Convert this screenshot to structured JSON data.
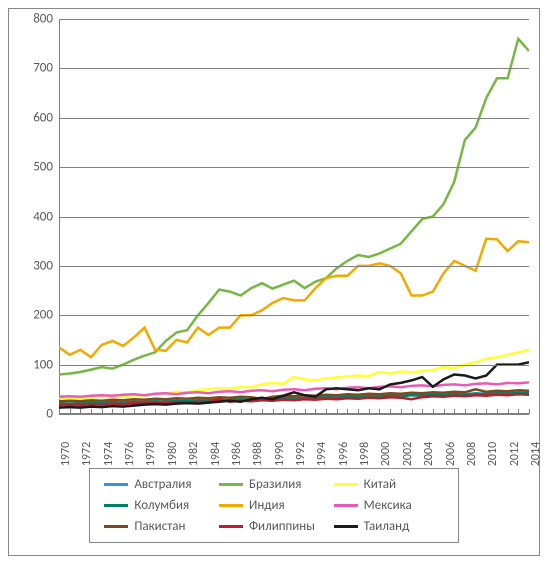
{
  "chart": {
    "type": "line",
    "background_color": "#ffffff",
    "border_color": "#888888",
    "grid_color": "#808080",
    "label_color": "#595959",
    "label_fontsize": 13,
    "xlabel_fontsize": 12,
    "ylim": [
      0,
      800
    ],
    "ytick_step": 100,
    "yticks": [
      0,
      100,
      200,
      300,
      400,
      500,
      600,
      700,
      800
    ],
    "xlim": [
      1970,
      2014
    ],
    "xticks": [
      1970,
      1972,
      1974,
      1976,
      1978,
      1980,
      1982,
      1984,
      1986,
      1988,
      1990,
      1992,
      1994,
      1996,
      1998,
      2000,
      2002,
      2004,
      2006,
      2008,
      2010,
      2012,
      2014
    ],
    "years": [
      1970,
      1971,
      1972,
      1973,
      1974,
      1975,
      1976,
      1977,
      1978,
      1979,
      1980,
      1981,
      1982,
      1983,
      1984,
      1985,
      1986,
      1987,
      1988,
      1989,
      1990,
      1991,
      1992,
      1993,
      1994,
      1995,
      1996,
      1997,
      1998,
      1999,
      2000,
      2001,
      2002,
      2003,
      2004,
      2005,
      2006,
      2007,
      2008,
      2009,
      2010,
      2011,
      2012,
      2013,
      2014
    ],
    "line_width": 2.5,
    "series": [
      {
        "name": "australia",
        "label": "Австралия",
        "color": "#2e9bd6",
        "values": [
          20,
          21,
          20,
          20,
          22,
          21,
          23,
          22,
          24,
          23,
          25,
          26,
          25,
          27,
          28,
          27,
          29,
          30,
          28,
          31,
          30,
          32,
          33,
          32,
          34,
          35,
          33,
          36,
          35,
          37,
          36,
          38,
          37,
          39,
          38,
          40,
          39,
          41,
          40,
          42,
          41,
          42,
          43,
          42,
          43
        ]
      },
      {
        "name": "brazil",
        "label": "Бразилия",
        "color": "#77b843",
        "values": [
          80,
          82,
          85,
          90,
          95,
          92,
          100,
          110,
          118,
          125,
          148,
          165,
          170,
          200,
          225,
          252,
          248,
          240,
          255,
          265,
          254,
          262,
          270,
          255,
          268,
          275,
          295,
          310,
          322,
          318,
          325,
          335,
          345,
          370,
          395,
          400,
          425,
          470,
          555,
          580,
          640,
          680,
          680,
          760,
          735
        ]
      },
      {
        "name": "china",
        "label": "Китай",
        "color": "#ffff33",
        "values": [
          33,
          32,
          30,
          33,
          35,
          34,
          36,
          38,
          37,
          40,
          42,
          45,
          44,
          48,
          50,
          52,
          51,
          55,
          54,
          60,
          63,
          61,
          75,
          70,
          68,
          72,
          74,
          76,
          78,
          77,
          85,
          82,
          86,
          84,
          87,
          89,
          95,
          93,
          100,
          104,
          112,
          115,
          120,
          125,
          130
        ]
      },
      {
        "name": "colombia",
        "label": "Колумбия",
        "color": "#008066",
        "values": [
          22,
          21,
          22,
          23,
          22,
          24,
          23,
          25,
          24,
          26,
          25,
          27,
          26,
          28,
          27,
          29,
          28,
          30,
          29,
          31,
          30,
          32,
          31,
          33,
          32,
          34,
          33,
          35,
          34,
          36,
          35,
          37,
          36,
          38,
          37,
          39,
          38,
          40,
          39,
          41,
          40,
          42,
          41,
          43,
          42
        ]
      },
      {
        "name": "india",
        "label": "Индия",
        "color": "#f2a900",
        "values": [
          135,
          120,
          130,
          115,
          140,
          148,
          138,
          155,
          175,
          130,
          128,
          150,
          145,
          175,
          160,
          175,
          175,
          200,
          200,
          210,
          225,
          235,
          230,
          230,
          255,
          275,
          280,
          280,
          300,
          300,
          305,
          300,
          285,
          240,
          240,
          248,
          285,
          310,
          300,
          290,
          355,
          354,
          330,
          350,
          348
        ]
      },
      {
        "name": "mexico",
        "label": "Мексика",
        "color": "#e85bb8",
        "values": [
          35,
          36,
          35,
          37,
          38,
          37,
          39,
          40,
          38,
          41,
          42,
          40,
          43,
          44,
          42,
          45,
          46,
          44,
          47,
          48,
          46,
          49,
          50,
          48,
          51,
          52,
          50,
          53,
          54,
          52,
          55,
          56,
          54,
          57,
          58,
          56,
          59,
          60,
          58,
          61,
          62,
          60,
          63,
          62,
          64
        ]
      },
      {
        "name": "pakistan",
        "label": "Пакистан",
        "color": "#7c4a1f",
        "values": [
          26,
          27,
          26,
          28,
          27,
          29,
          28,
          30,
          29,
          31,
          30,
          32,
          31,
          33,
          32,
          34,
          33,
          35,
          34,
          30,
          35,
          37,
          36,
          38,
          37,
          39,
          38,
          40,
          39,
          41,
          40,
          42,
          41,
          43,
          42,
          44,
          43,
          45,
          44,
          50,
          45,
          47,
          46,
          48,
          47
        ]
      },
      {
        "name": "philippines",
        "label": "Филиппины",
        "color": "#b81e2c",
        "values": [
          18,
          19,
          18,
          20,
          19,
          21,
          20,
          22,
          21,
          23,
          22,
          24,
          23,
          25,
          24,
          30,
          25,
          27,
          26,
          28,
          27,
          29,
          28,
          30,
          29,
          31,
          30,
          32,
          31,
          33,
          32,
          34,
          33,
          30,
          34,
          36,
          35,
          37,
          36,
          38,
          37,
          39,
          38,
          40,
          39
        ]
      },
      {
        "name": "thailand",
        "label": "Таиланд",
        "color": "#1a1a1a",
        "values": [
          13,
          14,
          13,
          15,
          14,
          16,
          15,
          17,
          19,
          20,
          19,
          21,
          22,
          21,
          23,
          25,
          27,
          25,
          30,
          33,
          30,
          37,
          44,
          38,
          35,
          50,
          52,
          50,
          48,
          52,
          50,
          60,
          63,
          68,
          75,
          55,
          70,
          80,
          78,
          72,
          78,
          100,
          100,
          100,
          105
        ]
      }
    ]
  }
}
